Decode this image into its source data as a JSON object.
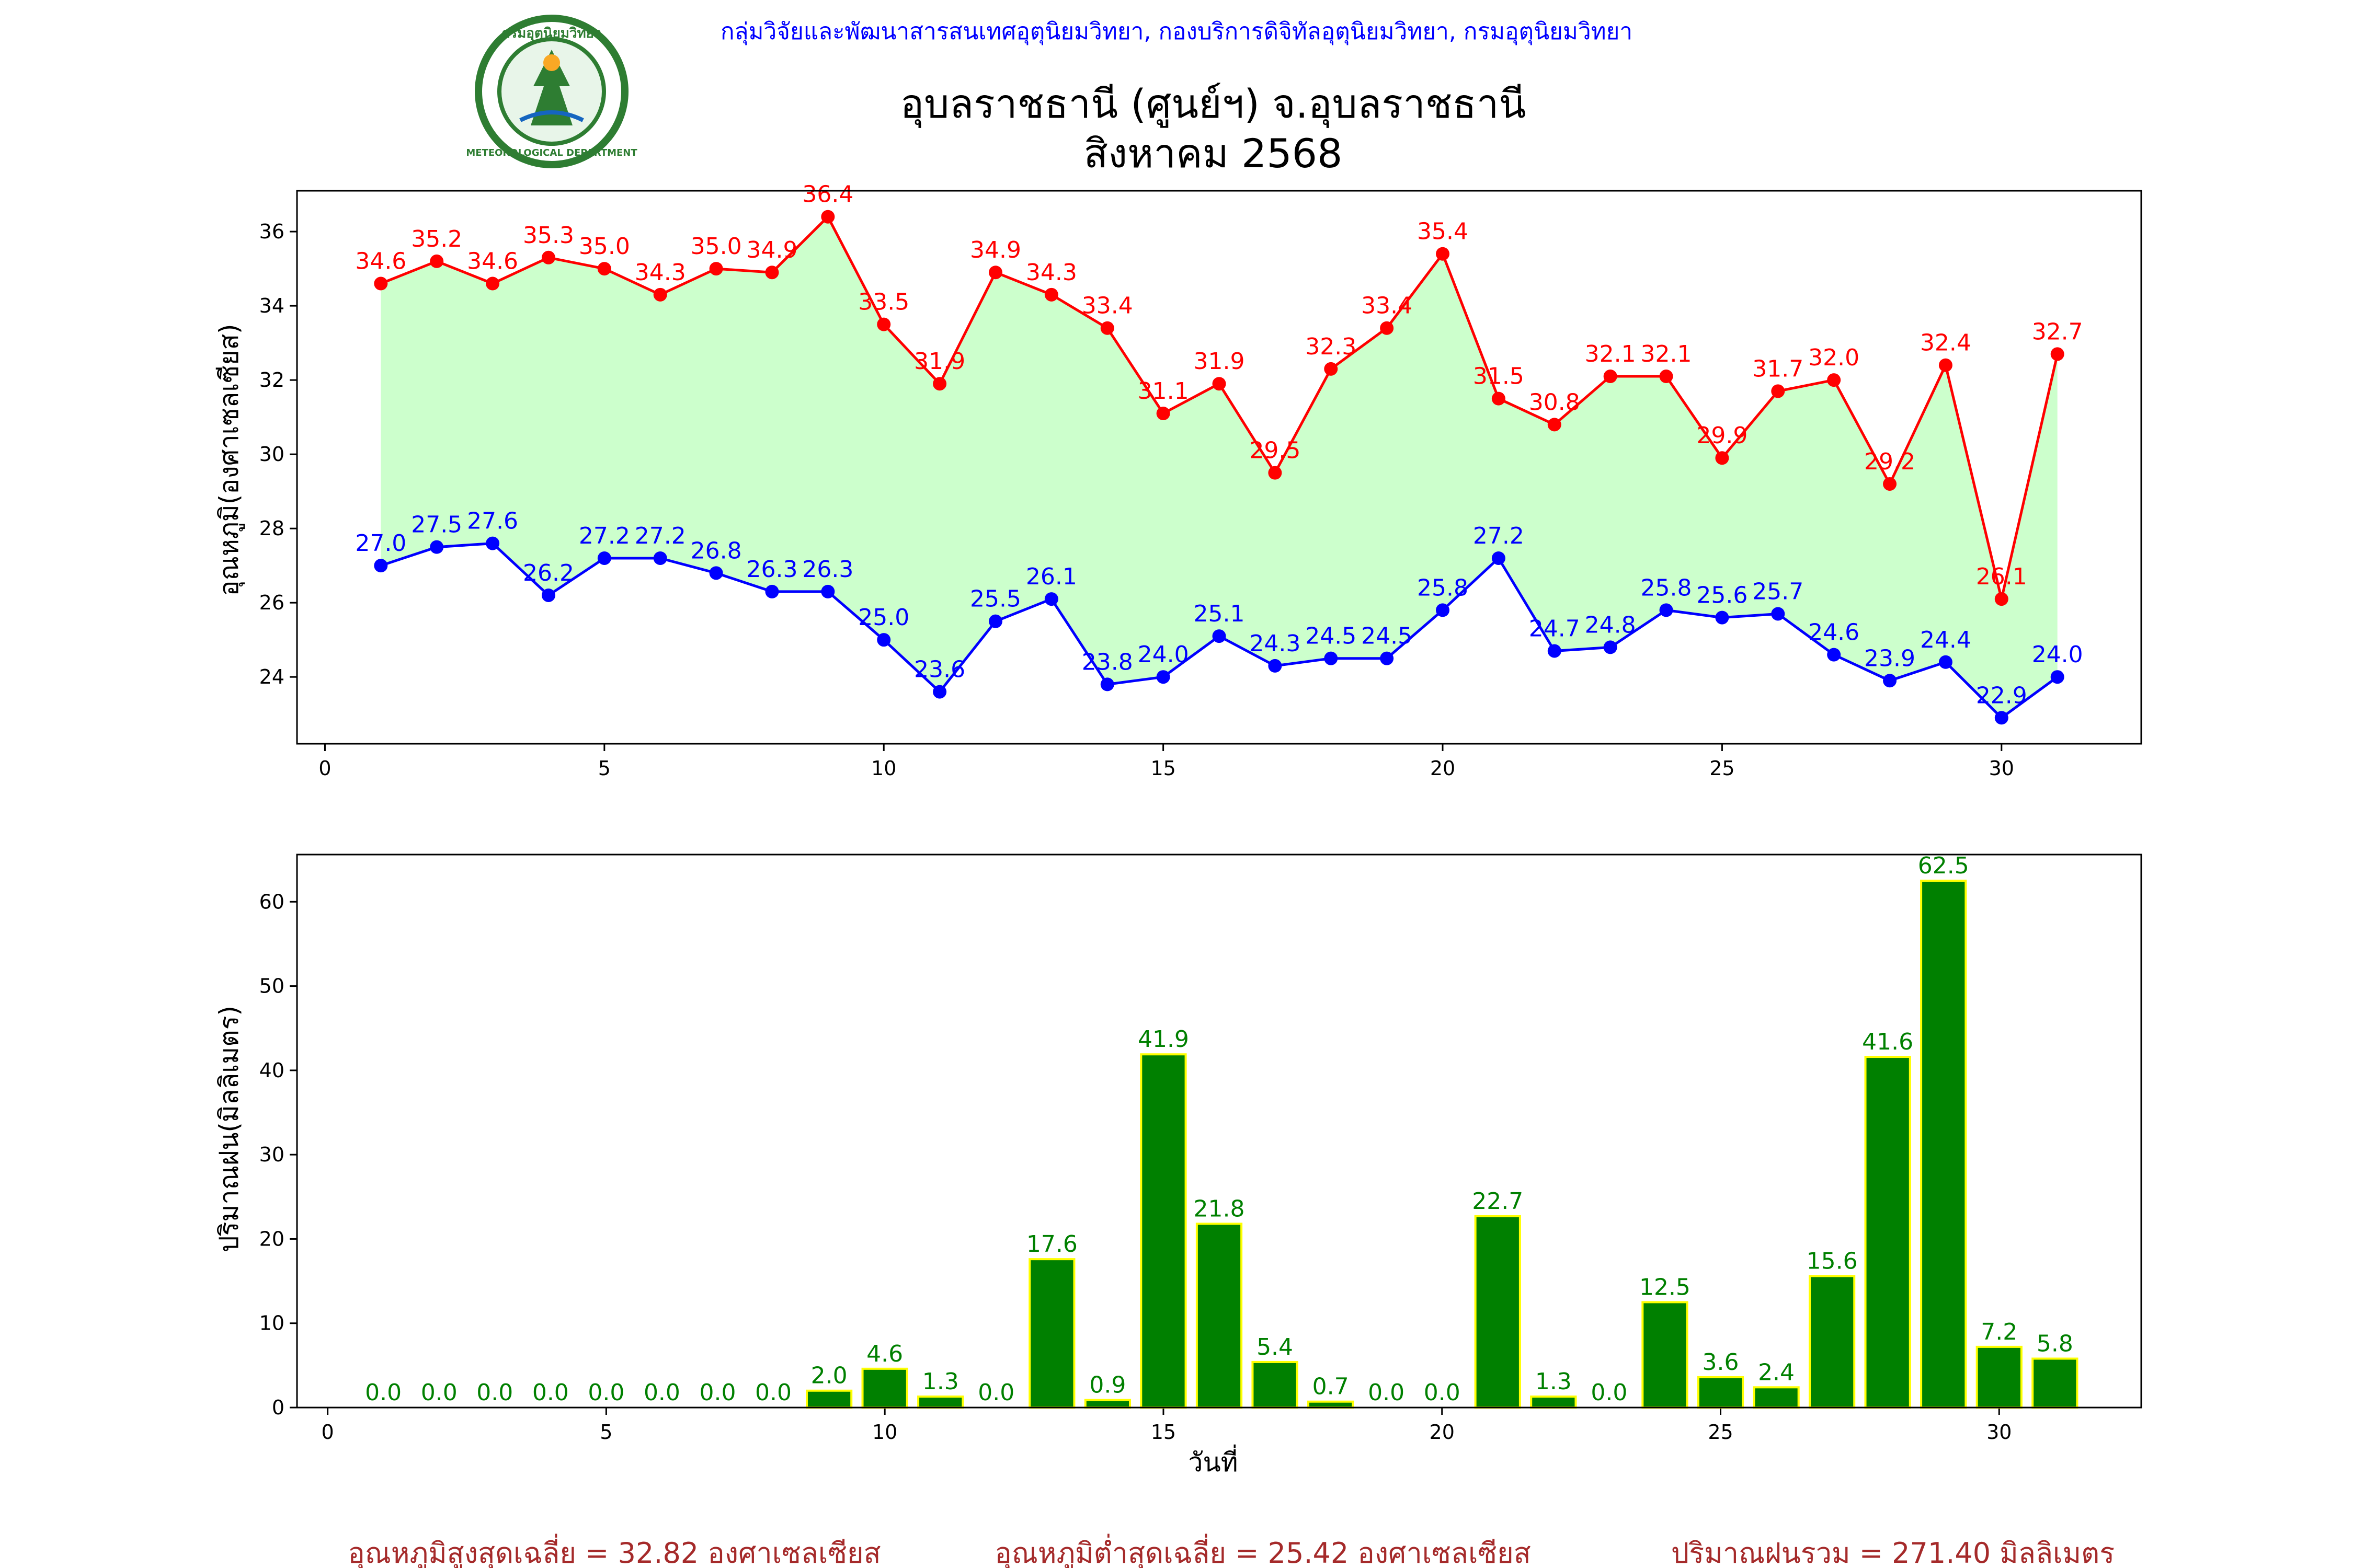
{
  "header": {
    "agency": "กลุ่มวิจัยและพัฒนาสารสนเทศอุตุนิยมวิทยา, กองบริการดิจิทัลอุตุนิยมวิทยา, กรมอุตุนิยมวิทยา",
    "station": "อุบลราชธานี (ศูนย์ฯ) จ.อุบลราชธานี",
    "month": "สิงหาคม 2568",
    "logo_text_top": "กรมอุตุนิยมวิทยา",
    "logo_text_bottom": "METEOROLOGICAL DEPARTMENT"
  },
  "summary": {
    "avg_max": "อุณหภูมิสูงสุดเฉลี่ย = 32.82 องศาเซลเซียส",
    "avg_min": "อุณหภูมิต่ำสุดเฉลี่ย = 25.42 องศาเซลเซียส",
    "total_rain": "ปริมาณฝนรวม = 271.40 มิลลิเมตร"
  },
  "colors": {
    "max": "#ff0000",
    "min": "#0000ff",
    "fill": "#ccffcc",
    "bar": "#008000",
    "bar_edge": "#ffff00",
    "header": "#0000ff",
    "summary": "#a52a2a"
  },
  "chart_data": [
    {
      "type": "line",
      "ylabel": "อุณหภูมิ(องศาเซลเซียส)",
      "x": [
        1,
        2,
        3,
        4,
        5,
        6,
        7,
        8,
        9,
        10,
        11,
        12,
        13,
        14,
        15,
        16,
        17,
        18,
        19,
        20,
        21,
        22,
        23,
        24,
        25,
        26,
        27,
        28,
        29,
        30,
        31
      ],
      "series": [
        {
          "values": [
            34.6,
            35.2,
            34.6,
            35.3,
            35.0,
            34.3,
            35.0,
            34.9,
            36.4,
            33.5,
            31.9,
            34.9,
            34.3,
            33.4,
            31.1,
            31.9,
            29.5,
            32.3,
            33.4,
            35.4,
            31.5,
            30.8,
            32.1,
            32.1,
            29.9,
            31.7,
            32.0,
            29.2,
            32.4,
            26.1,
            32.7
          ]
        },
        {
          "values": [
            27.0,
            27.5,
            27.6,
            26.2,
            27.2,
            27.2,
            26.8,
            26.3,
            26.3,
            25.0,
            23.6,
            25.5,
            26.1,
            23.8,
            24.0,
            25.1,
            24.3,
            24.5,
            24.5,
            25.8,
            27.2,
            24.7,
            24.8,
            25.8,
            25.6,
            25.7,
            24.6,
            23.9,
            24.4,
            22.9,
            24.0
          ]
        }
      ],
      "xlim": [
        -0.5,
        32.5
      ],
      "ylim": [
        22.2,
        37.1
      ],
      "xticks": [
        0,
        5,
        10,
        15,
        20,
        25,
        30
      ],
      "yticks": [
        24,
        26,
        28,
        30,
        32,
        34,
        36
      ],
      "grid": false
    },
    {
      "type": "bar",
      "xlabel": "วันที่",
      "ylabel": "ปริมาณฝน(มิลลิเมตร)",
      "x": [
        1,
        2,
        3,
        4,
        5,
        6,
        7,
        8,
        9,
        10,
        11,
        12,
        13,
        14,
        15,
        16,
        17,
        18,
        19,
        20,
        21,
        22,
        23,
        24,
        25,
        26,
        27,
        28,
        29,
        30,
        31
      ],
      "values": [
        0.0,
        0.0,
        0.0,
        0.0,
        0.0,
        0.0,
        0.0,
        0.0,
        2.0,
        4.6,
        1.3,
        0.0,
        17.6,
        0.9,
        41.9,
        21.8,
        5.4,
        0.7,
        0.0,
        0.0,
        22.7,
        1.3,
        0.0,
        12.5,
        3.6,
        2.4,
        15.6,
        41.6,
        62.5,
        7.2,
        5.8
      ],
      "xlim": [
        -0.55,
        32.55
      ],
      "ylim": [
        0,
        65.6
      ],
      "xticks": [
        0,
        5,
        10,
        15,
        20,
        25,
        30
      ],
      "yticks": [
        0,
        10,
        20,
        30,
        40,
        50,
        60
      ],
      "grid": false
    }
  ]
}
